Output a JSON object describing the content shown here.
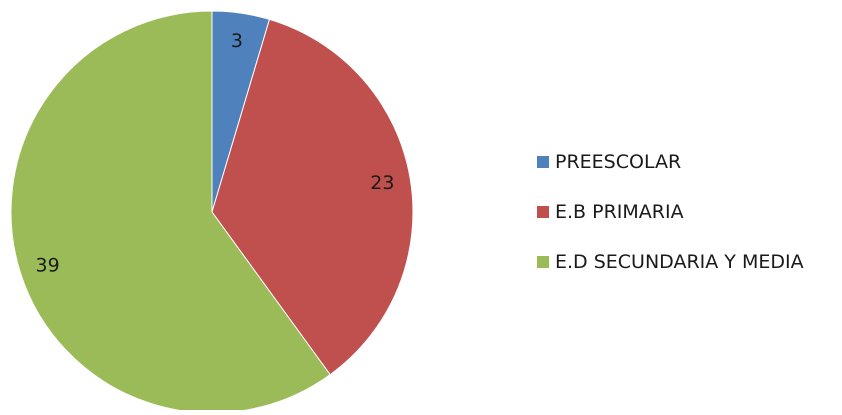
{
  "chart_data": {
    "type": "pie",
    "title": "",
    "categories": [
      "PREESCOLAR",
      "E.B PRIMARIA",
      "E.D SECUNDARIA Y MEDIA"
    ],
    "values": [
      3,
      23,
      39
    ],
    "colors": [
      "#4f81bd",
      "#c0504d",
      "#9bbb59"
    ],
    "data_labels": [
      "3",
      "23",
      "39"
    ],
    "start_angle_deg": 0,
    "direction": "clockwise",
    "legend_position": "right"
  }
}
